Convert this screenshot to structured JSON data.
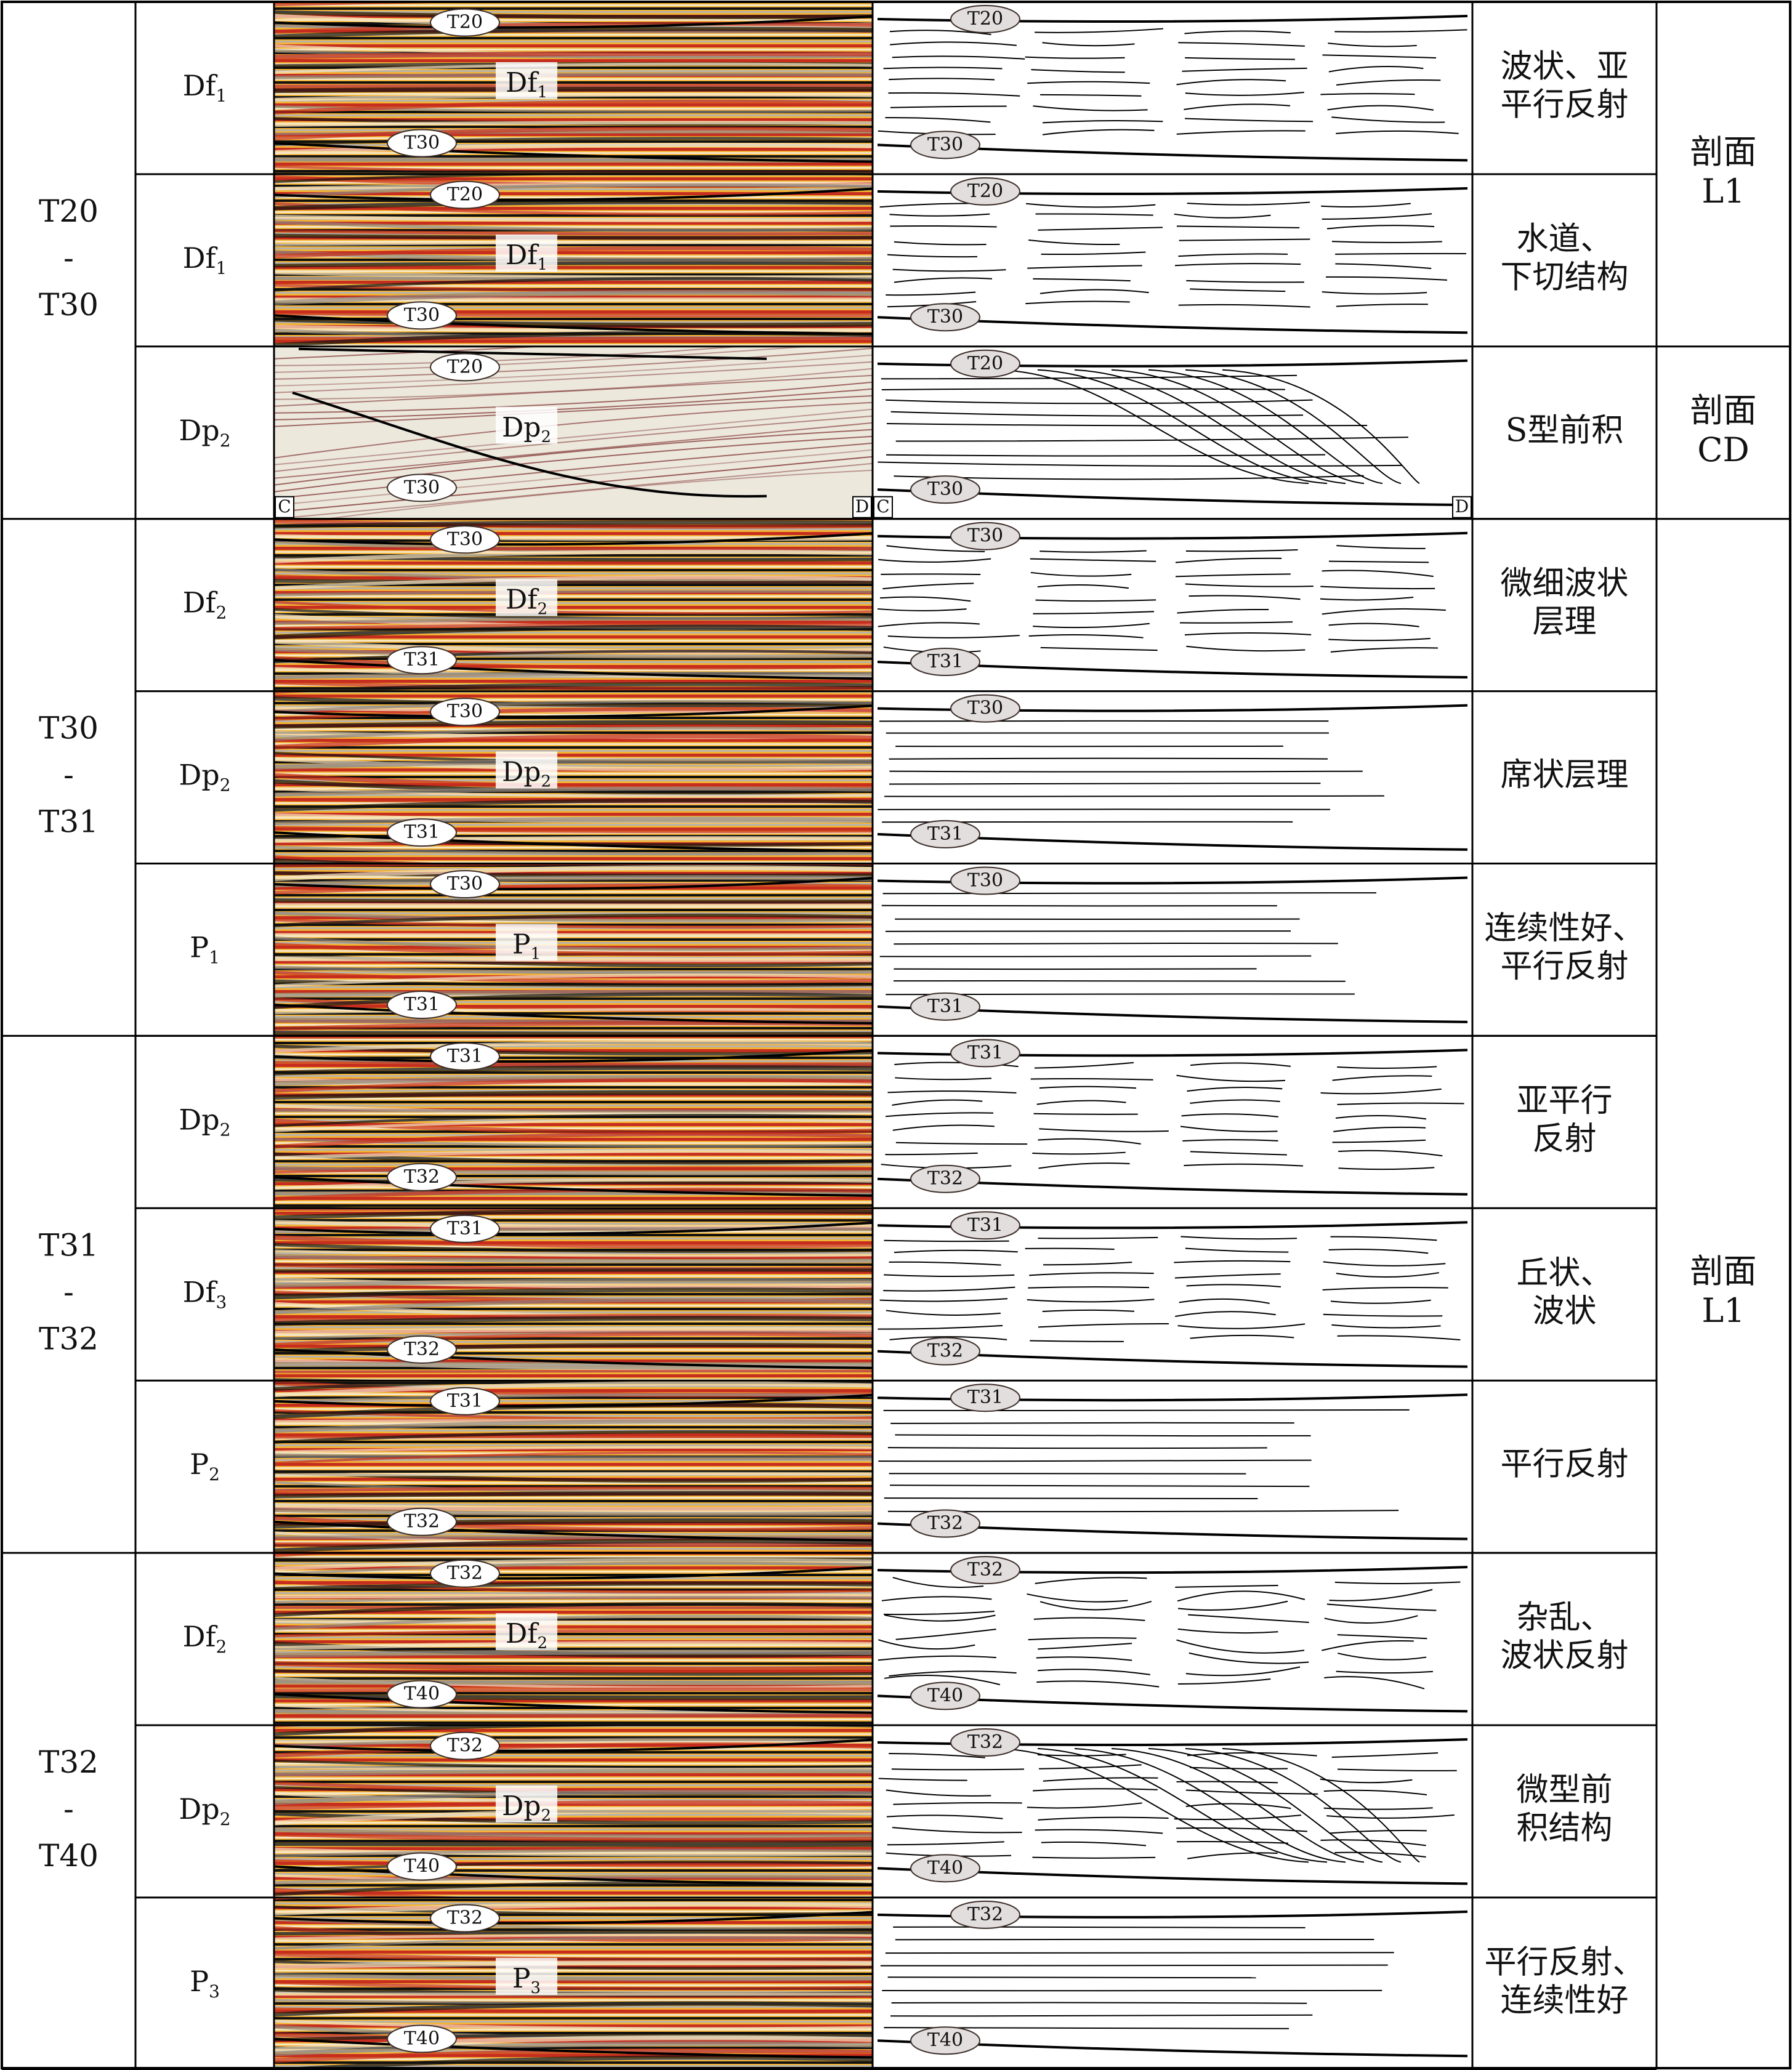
{
  "colors": {
    "grid": "#000000",
    "seismic_peak": "#c62e1f",
    "seismic_trough": "#111111",
    "seismic_mid": "#f2b233",
    "seismic_bg": "#f6e6c4",
    "cd_bg": "#ece8dc",
    "cd_line": "#7a2a2a",
    "tag_fill_light": "#ffffff",
    "tag_fill_dark": "#e2dedd",
    "tag_stroke": "#3b2d28"
  },
  "groups": [
    {
      "interval": [
        "T20",
        "-",
        "T30"
      ],
      "rows": [
        {
          "facies": "Df",
          "sub": "1",
          "img_label": "Df",
          "img_sub": "1",
          "upper": "T20",
          "lower": "T30",
          "desc": [
            "波状、亚",
            "平行反射"
          ],
          "pattern": "wavy",
          "style": "seismic"
        },
        {
          "facies": "Df",
          "sub": "1",
          "img_label": "Df",
          "img_sub": "1",
          "upper": "T20",
          "lower": "T30",
          "desc": [
            "水道、",
            "下切结构"
          ],
          "pattern": "channel",
          "style": "seismic"
        },
        {
          "facies": "Dp",
          "sub": "2",
          "img_label": "Dp",
          "img_sub": "2",
          "upper": "T20",
          "lower": "T30",
          "desc": [
            "S型前积"
          ],
          "pattern": "sigmoid",
          "style": "cd",
          "corner_left": "C",
          "corner_right": "D"
        }
      ]
    },
    {
      "interval": [
        "T30",
        "-",
        "T31"
      ],
      "rows": [
        {
          "facies": "Df",
          "sub": "2",
          "img_label": "Df",
          "img_sub": "2",
          "upper": "T30",
          "lower": "T31",
          "desc": [
            "微细波状",
            "层理"
          ],
          "pattern": "wavy",
          "style": "seismic"
        },
        {
          "facies": "Dp",
          "sub": "2",
          "img_label": "Dp",
          "img_sub": "2",
          "upper": "T30",
          "lower": "T31",
          "desc": [
            "席状层理"
          ],
          "pattern": "sheet",
          "style": "seismic"
        },
        {
          "facies": "P",
          "sub": "1",
          "img_label": "P",
          "img_sub": "1",
          "upper": "T30",
          "lower": "T31",
          "desc": [
            "连续性好、",
            "平行反射"
          ],
          "pattern": "parallel",
          "style": "seismic"
        }
      ]
    },
    {
      "interval": [
        "T31",
        "-",
        "T32"
      ],
      "rows": [
        {
          "facies": "Dp",
          "sub": "2",
          "img_label": "",
          "img_sub": "",
          "upper": "T31",
          "lower": "T32",
          "desc": [
            "亚平行",
            "反射"
          ],
          "pattern": "subparallel",
          "style": "seismic"
        },
        {
          "facies": "Df",
          "sub": "3",
          "img_label": "",
          "img_sub": "",
          "upper": "T31",
          "lower": "T32",
          "desc": [
            "丘状、",
            "波状"
          ],
          "pattern": "mound",
          "style": "seismic"
        },
        {
          "facies": "P",
          "sub": "2",
          "img_label": "",
          "img_sub": "",
          "upper": "T31",
          "lower": "T32",
          "desc": [
            "平行反射"
          ],
          "pattern": "parallel",
          "style": "seismic"
        }
      ]
    },
    {
      "interval": [
        "T32",
        "-",
        "T40"
      ],
      "rows": [
        {
          "facies": "Df",
          "sub": "2",
          "img_label": "Df",
          "img_sub": "2",
          "upper": "T32",
          "lower": "T40",
          "desc": [
            "杂乱、",
            "波状反射"
          ],
          "pattern": "chaotic",
          "style": "seismic"
        },
        {
          "facies": "Dp",
          "sub": "2",
          "img_label": "Dp",
          "img_sub": "2",
          "upper": "T32",
          "lower": "T40",
          "desc": [
            "微型前",
            "积结构"
          ],
          "pattern": "prograde",
          "style": "seismic"
        },
        {
          "facies": "P",
          "sub": "3",
          "img_label": "P",
          "img_sub": "3",
          "upper": "T32",
          "lower": "T40",
          "desc": [
            "平行反射、",
            "连续性好"
          ],
          "pattern": "parallel",
          "style": "seismic"
        }
      ]
    }
  ],
  "sections": [
    {
      "lines": [
        "剖面",
        "L1"
      ]
    },
    {
      "lines": [
        "剖面",
        "CD"
      ]
    },
    {
      "lines": [
        "剖面",
        "L1"
      ]
    }
  ]
}
